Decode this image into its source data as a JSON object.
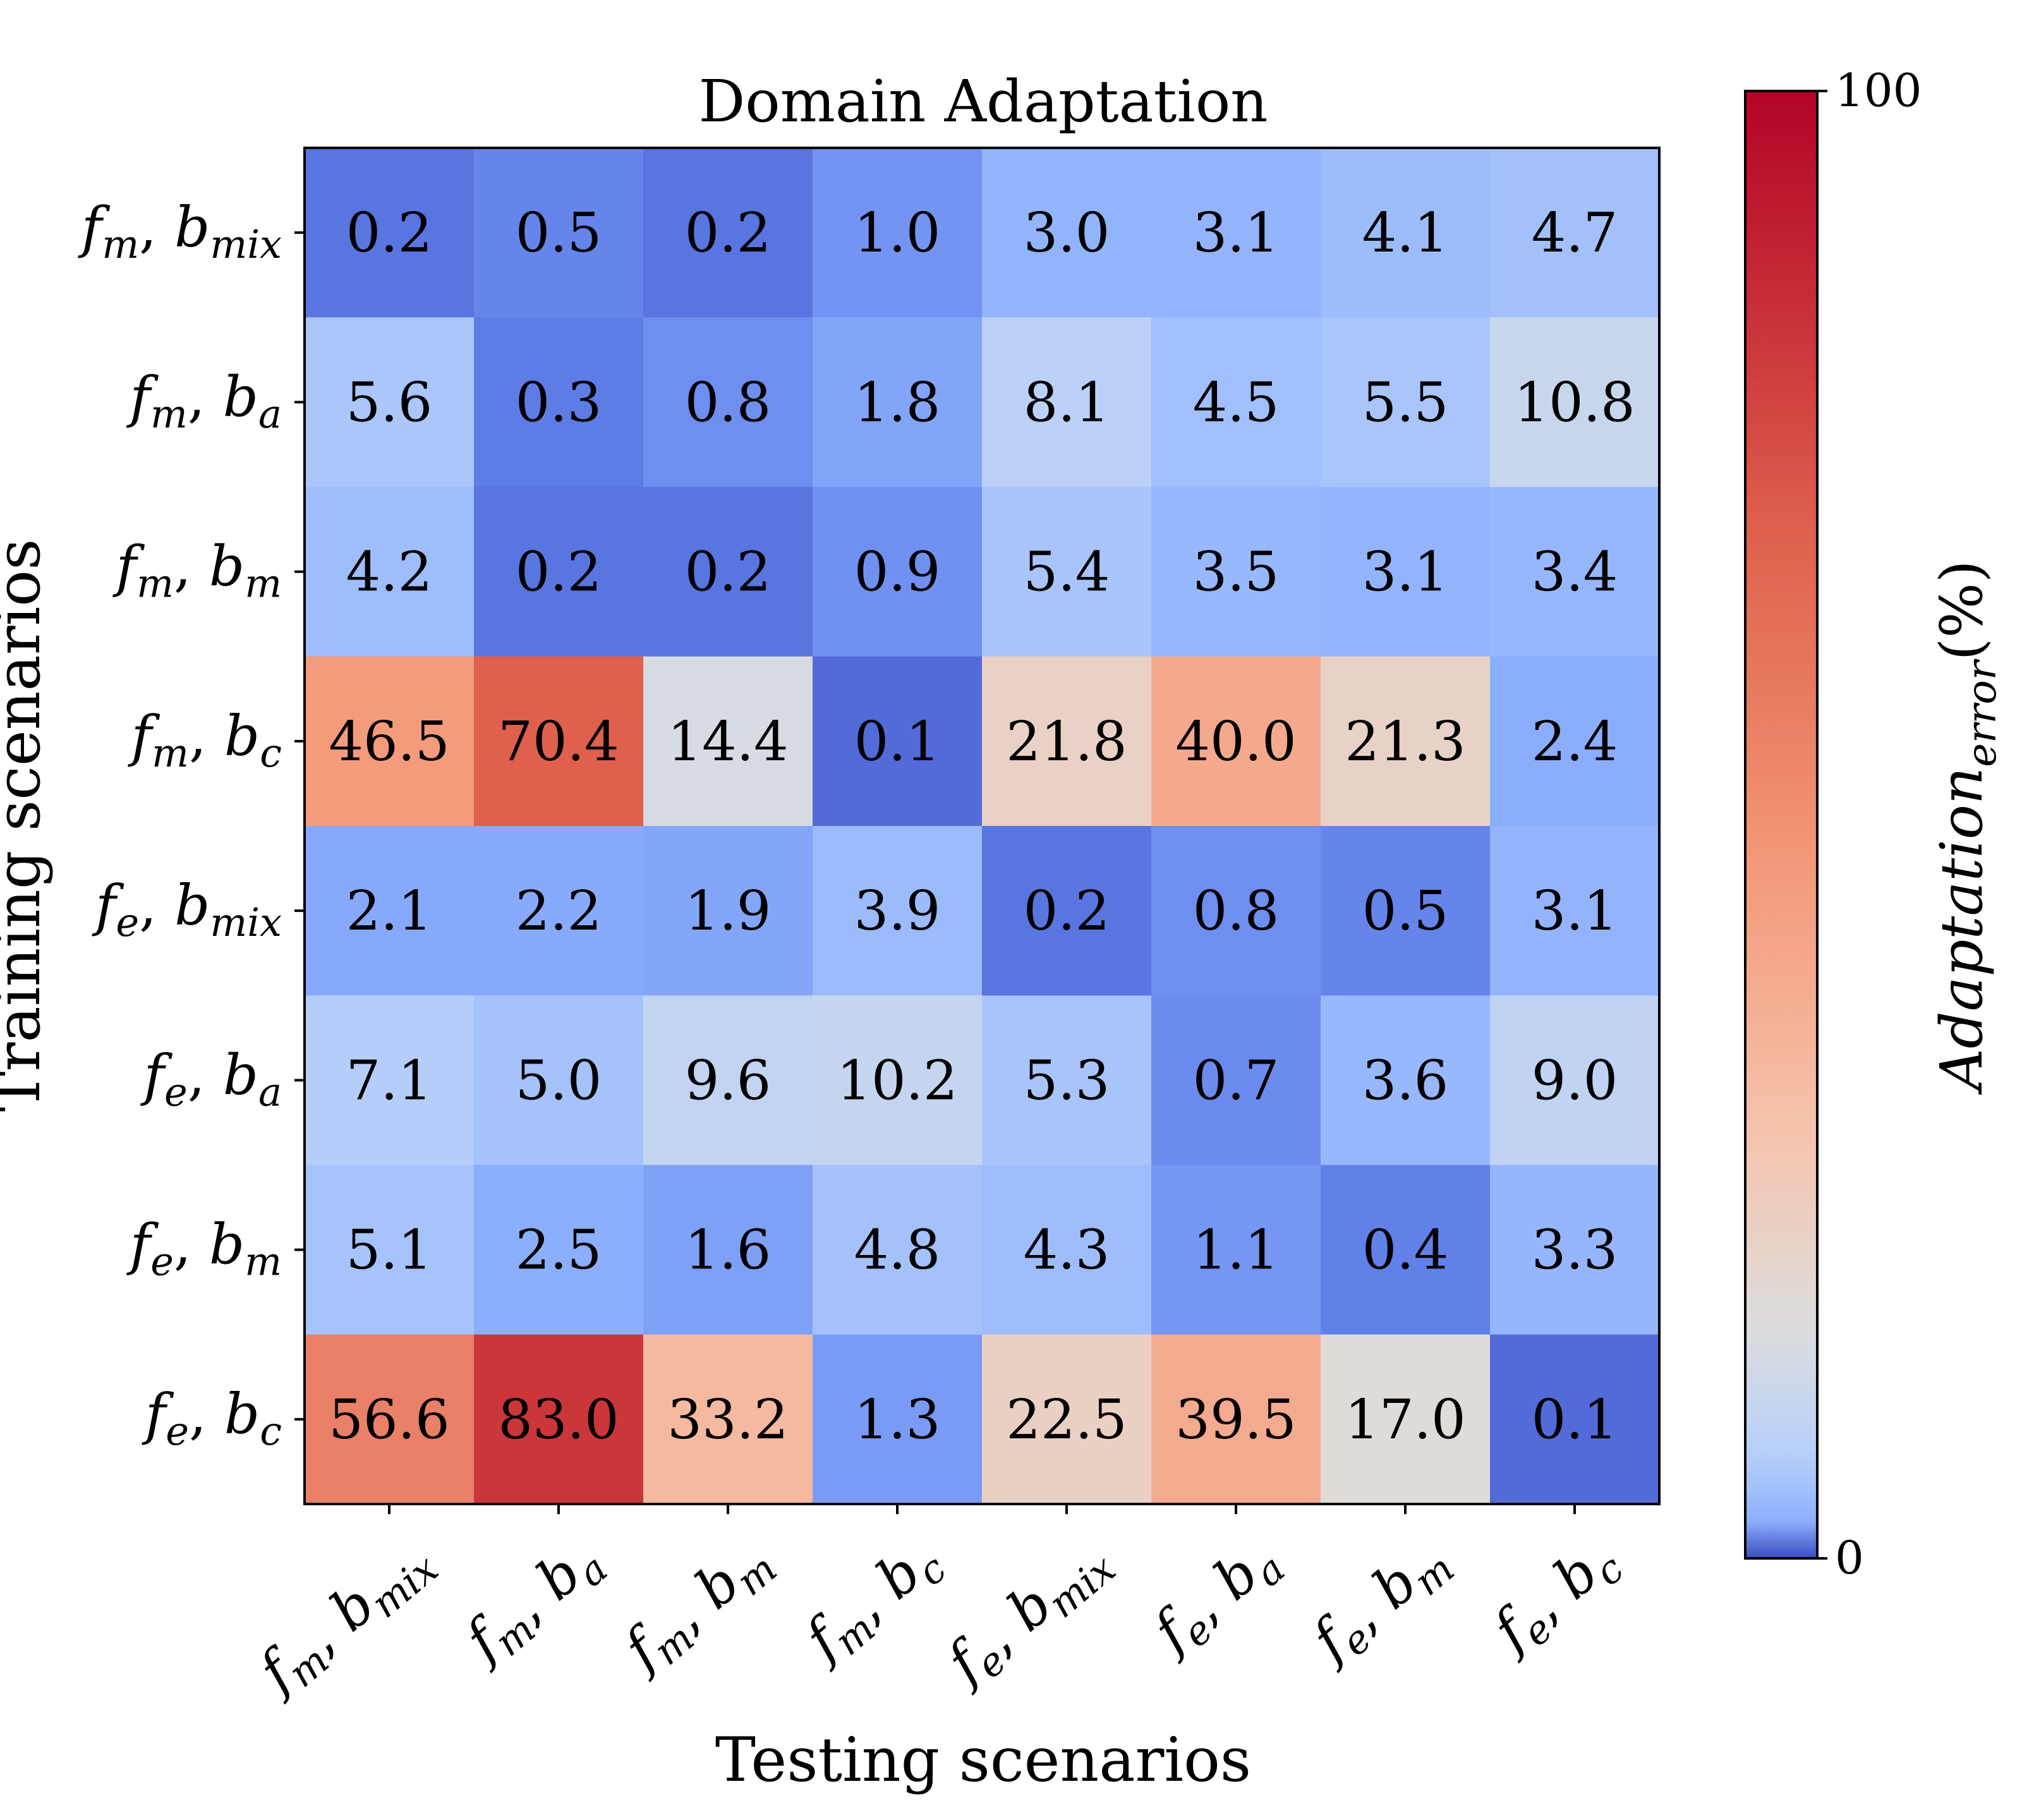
{
  "chart_data": {
    "type": "heatmap",
    "title": "Domain Adaptation",
    "xlabel": "Testing scenarios",
    "ylabel": "Training scenarios",
    "x_categories": [
      [
        "f",
        "m",
        "b",
        "mix"
      ],
      [
        "f",
        "m",
        "b",
        "a"
      ],
      [
        "f",
        "m",
        "b",
        "m"
      ],
      [
        "f",
        "m",
        "b",
        "c"
      ],
      [
        "f",
        "e",
        "b",
        "mix"
      ],
      [
        "f",
        "e",
        "b",
        "a"
      ],
      [
        "f",
        "e",
        "b",
        "m"
      ],
      [
        "f",
        "e",
        "b",
        "c"
      ]
    ],
    "y_categories": [
      [
        "f",
        "m",
        "b",
        "mix"
      ],
      [
        "f",
        "m",
        "b",
        "a"
      ],
      [
        "f",
        "m",
        "b",
        "m"
      ],
      [
        "f",
        "m",
        "b",
        "c"
      ],
      [
        "f",
        "e",
        "b",
        "mix"
      ],
      [
        "f",
        "e",
        "b",
        "a"
      ],
      [
        "f",
        "e",
        "b",
        "m"
      ],
      [
        "f",
        "e",
        "b",
        "c"
      ]
    ],
    "values": [
      [
        0.2,
        0.5,
        0.2,
        1.0,
        3.0,
        3.1,
        4.1,
        4.7
      ],
      [
        5.6,
        0.3,
        0.8,
        1.8,
        8.1,
        4.5,
        5.5,
        10.8
      ],
      [
        4.2,
        0.2,
        0.2,
        0.9,
        5.4,
        3.5,
        3.1,
        3.4
      ],
      [
        46.5,
        70.4,
        14.4,
        0.1,
        21.8,
        40.0,
        21.3,
        2.4
      ],
      [
        2.1,
        2.2,
        1.9,
        3.9,
        0.2,
        0.8,
        0.5,
        3.1
      ],
      [
        7.1,
        5.0,
        9.6,
        10.2,
        5.3,
        0.7,
        3.6,
        9.0
      ],
      [
        5.1,
        2.5,
        1.6,
        4.8,
        4.3,
        1.1,
        0.4,
        3.3
      ],
      [
        56.6,
        83.0,
        33.2,
        1.3,
        22.5,
        39.5,
        17.0,
        0.1
      ]
    ],
    "value_labels": [
      [
        "0.2",
        "0.5",
        "0.2",
        "1.0",
        "3.0",
        "3.1",
        "4.1",
        "4.7"
      ],
      [
        "5.6",
        "0.3",
        "0.8",
        "1.8",
        "8.1",
        "4.5",
        "5.5",
        "10.8"
      ],
      [
        "4.2",
        "0.2",
        "0.2",
        "0.9",
        "5.4",
        "3.5",
        "3.1",
        "3.4"
      ],
      [
        "46.5",
        "70.4",
        "14.4",
        "0.1",
        "21.8",
        "40.0",
        "21.3",
        "2.4"
      ],
      [
        "2.1",
        "2.2",
        "1.9",
        "3.9",
        "0.2",
        "0.8",
        "0.5",
        "3.1"
      ],
      [
        "7.1",
        "5.0",
        "9.6",
        "10.2",
        "5.3",
        "0.7",
        "3.6",
        "9.0"
      ],
      [
        "5.1",
        "2.5",
        "1.6",
        "4.8",
        "4.3",
        "1.1",
        "0.4",
        "3.3"
      ],
      [
        "56.6",
        "83.0",
        "33.2",
        "1.3",
        "22.5",
        "39.5",
        "17.0",
        "0.1"
      ]
    ],
    "colorbar": {
      "colormap": "coolwarm",
      "range": [
        0,
        100
      ],
      "tick_labels": [
        "0",
        "100"
      ],
      "label_main": "Adaptation",
      "label_sub": "error",
      "label_suffix": "(%)",
      "orientation": "vertical",
      "position": "right"
    },
    "grid": false,
    "legend": false
  }
}
